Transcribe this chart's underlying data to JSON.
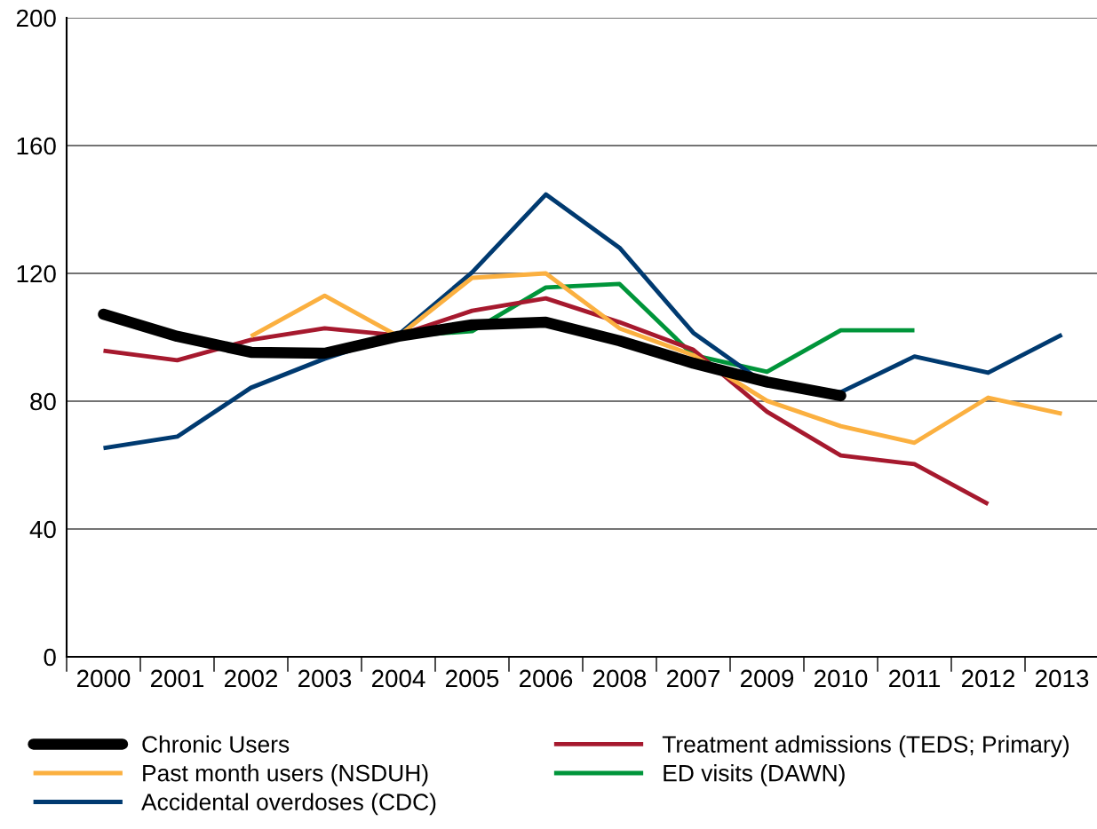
{
  "chart_data": {
    "type": "line",
    "categories": [
      "2000",
      "2001",
      "2002",
      "2003",
      "2004",
      "2005",
      "2006",
      "2008",
      "2007",
      "2009",
      "2010",
      "2011",
      "2012",
      "2013"
    ],
    "ylim": [
      0,
      200
    ],
    "yticks": [
      0,
      40,
      80,
      120,
      160,
      200
    ],
    "grid": "y",
    "legend": "bottom",
    "series": [
      {
        "name": "Chronic Users",
        "color": "#000000",
        "values": [
          107.2,
          100.3,
          95.3,
          95.0,
          100.3,
          103.9,
          104.7,
          98.9,
          91.9,
          86.0,
          81.7,
          null,
          null,
          null
        ]
      },
      {
        "name": "Past month users (NSDUH)",
        "color": "#fbb040",
        "values": [
          null,
          null,
          100.3,
          113.0,
          100.3,
          118.6,
          120.0,
          102.8,
          94.4,
          80.1,
          72.2,
          67.0,
          81.1,
          76.1
        ]
      },
      {
        "name": "Accidental overdoses (CDC)",
        "color": "#003a70",
        "values": [
          65.3,
          68.9,
          84.2,
          93.3,
          100.8,
          120.3,
          144.7,
          128.0,
          101.4,
          85.0,
          82.8,
          94.0,
          88.9,
          100.8
        ]
      },
      {
        "name": "Treatment admissions (TEDS; Primary)",
        "color": "#a6192e",
        "values": [
          95.8,
          92.8,
          99.2,
          102.8,
          100.6,
          108.3,
          112.2,
          104.7,
          96.1,
          76.7,
          63.0,
          60.3,
          47.8,
          null
        ]
      },
      {
        "name": "ED visits (DAWN)",
        "color": "#00953a",
        "values": [
          null,
          null,
          null,
          null,
          100.3,
          101.9,
          115.6,
          116.7,
          94.4,
          89.2,
          102.2,
          102.2,
          null,
          null
        ]
      }
    ]
  }
}
